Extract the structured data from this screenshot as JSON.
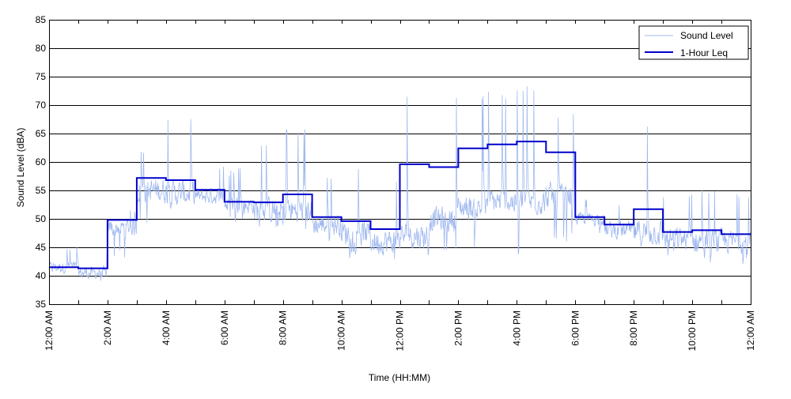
{
  "chart_data": {
    "type": "line",
    "title": "",
    "xlabel": "Time (HH:MM)",
    "ylabel": "Sound Level (dBA)",
    "xlim": [
      0,
      24
    ],
    "ylim": [
      35,
      85
    ],
    "y_ticks": [
      35,
      40,
      45,
      50,
      55,
      60,
      65,
      70,
      75,
      80,
      85
    ],
    "x_ticks": [
      0,
      1,
      2,
      3,
      4,
      5,
      6,
      7,
      8,
      9,
      10,
      11,
      12,
      13,
      14,
      15,
      16,
      17,
      18,
      19,
      20,
      21,
      22,
      23,
      24
    ],
    "x_tick_labels": [
      {
        "hour": 0,
        "label": "12:00 AM"
      },
      {
        "hour": 2,
        "label": "2:00 AM"
      },
      {
        "hour": 4,
        "label": "4:00 AM"
      },
      {
        "hour": 6,
        "label": "6:00 AM"
      },
      {
        "hour": 8,
        "label": "8:00 AM"
      },
      {
        "hour": 10,
        "label": "10:00 AM"
      },
      {
        "hour": 12,
        "label": "12:00 PM"
      },
      {
        "hour": 14,
        "label": "2:00 PM"
      },
      {
        "hour": 16,
        "label": "4:00 PM"
      },
      {
        "hour": 18,
        "label": "6:00 PM"
      },
      {
        "hour": 20,
        "label": "8:00 PM"
      },
      {
        "hour": 22,
        "label": "10:00 PM"
      },
      {
        "hour": 24,
        "label": "12:00 AM"
      }
    ],
    "grid": "horizontal",
    "legend_position": "top-right",
    "colors": {
      "sound_level": "#9fb8ef",
      "leq": "#0000cc",
      "grid": "#000000",
      "axis": "#000000"
    },
    "series": [
      {
        "name": "Sound Level",
        "style": "thin-line",
        "envelope_by_hour": [
          {
            "hour": 0,
            "min": 39.5,
            "max": 45.5,
            "typical": 41.5
          },
          {
            "hour": 1,
            "min": 38.5,
            "max": 45.0,
            "typical": 40.5
          },
          {
            "hour": 2,
            "min": 43.0,
            "max": 52.5,
            "typical": 48.5
          },
          {
            "hour": 3,
            "min": 49.0,
            "max": 62.0,
            "typical": 55.0
          },
          {
            "hour": 4,
            "min": 45.0,
            "max": 68.0,
            "typical": 54.5
          },
          {
            "hour": 5,
            "min": 51.0,
            "max": 59.5,
            "typical": 54.0
          },
          {
            "hour": 6,
            "min": 49.0,
            "max": 59.0,
            "typical": 52.5
          },
          {
            "hour": 7,
            "min": 47.5,
            "max": 63.0,
            "typical": 51.5
          },
          {
            "hour": 8,
            "min": 48.0,
            "max": 66.5,
            "typical": 51.5
          },
          {
            "hour": 9,
            "min": 46.0,
            "max": 58.0,
            "typical": 49.0
          },
          {
            "hour": 10,
            "min": 43.0,
            "max": 59.0,
            "typical": 47.5
          },
          {
            "hour": 11,
            "min": 42.5,
            "max": 57.0,
            "typical": 46.0
          },
          {
            "hour": 12,
            "min": 42.5,
            "max": 71.5,
            "typical": 47.0
          },
          {
            "hour": 13,
            "min": 43.5,
            "max": 72.0,
            "typical": 50.0
          },
          {
            "hour": 14,
            "min": 43.5,
            "max": 72.0,
            "typical": 52.0
          },
          {
            "hour": 15,
            "min": 43.0,
            "max": 72.5,
            "typical": 53.0
          },
          {
            "hour": 16,
            "min": 43.5,
            "max": 73.5,
            "typical": 53.0
          },
          {
            "hour": 17,
            "min": 46.0,
            "max": 68.5,
            "typical": 54.0
          },
          {
            "hour": 18,
            "min": 47.5,
            "max": 54.5,
            "typical": 50.0
          },
          {
            "hour": 19,
            "min": 44.5,
            "max": 53.5,
            "typical": 48.0
          },
          {
            "hour": 20,
            "min": 44.0,
            "max": 67.5,
            "typical": 47.5
          },
          {
            "hour": 21,
            "min": 43.0,
            "max": 55.0,
            "typical": 46.5
          },
          {
            "hour": 22,
            "min": 42.0,
            "max": 55.5,
            "typical": 46.0
          },
          {
            "hour": 23,
            "min": 42.0,
            "max": 54.5,
            "typical": 46.0
          }
        ]
      },
      {
        "name": "1-Hour Leq",
        "style": "step",
        "hours": [
          0,
          1,
          2,
          3,
          4,
          5,
          6,
          7,
          8,
          9,
          10,
          11,
          12,
          13,
          14,
          15,
          16,
          17,
          18,
          19,
          20,
          21,
          22,
          23
        ],
        "values": [
          41.5,
          41.3,
          49.8,
          57.2,
          56.8,
          55.1,
          53.0,
          52.9,
          54.3,
          50.3,
          49.6,
          48.2,
          59.6,
          59.1,
          62.4,
          63.1,
          63.6,
          61.7,
          50.3,
          49.0,
          51.7,
          47.7,
          48.0,
          47.3
        ]
      }
    ]
  }
}
